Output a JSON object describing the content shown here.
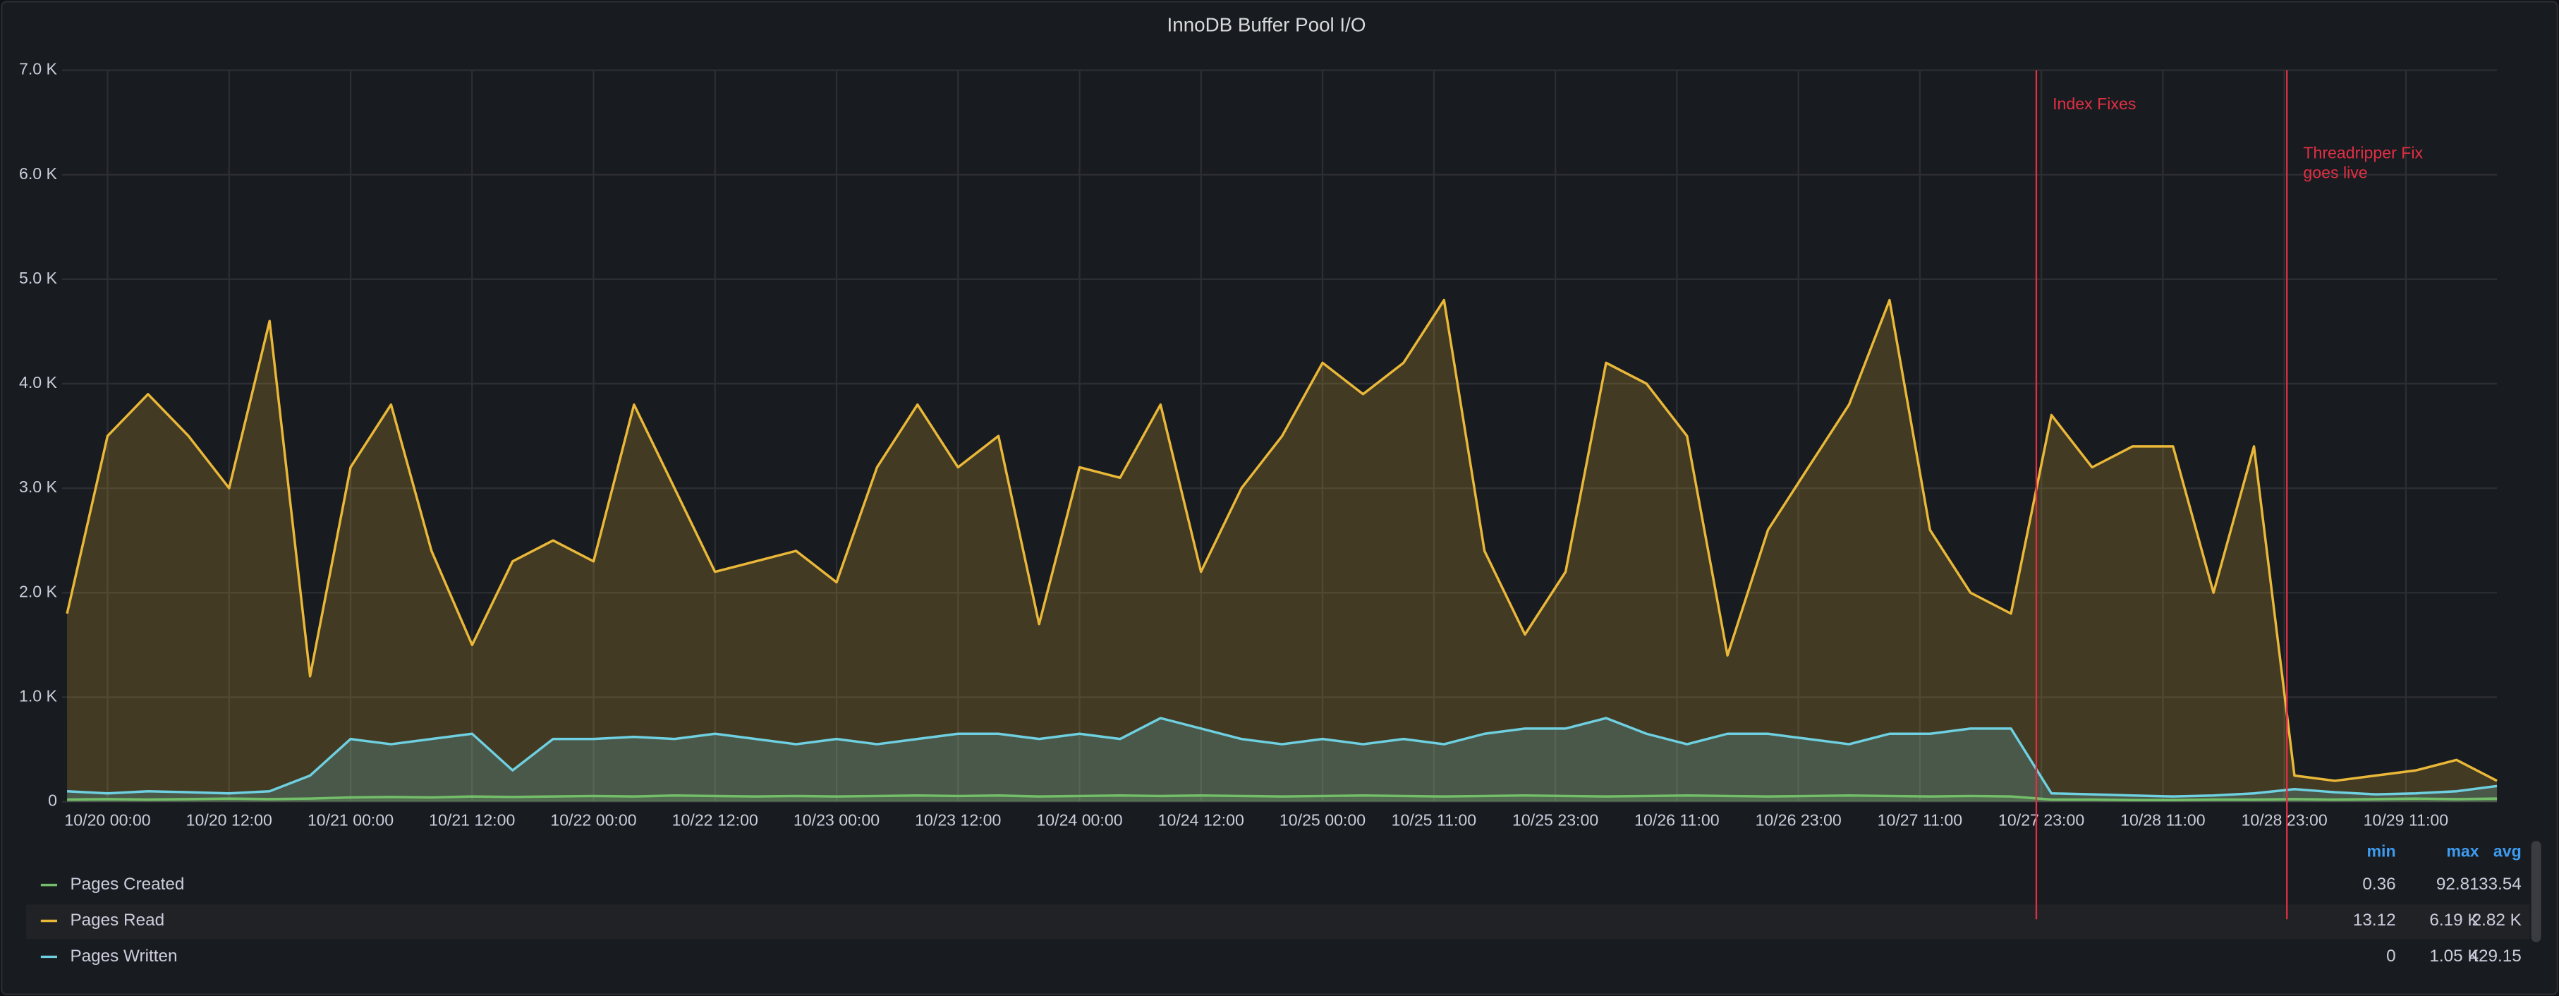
{
  "chart_data": {
    "type": "line",
    "title": "InnoDB Buffer Pool I/O",
    "x": [
      "10/19 20:00",
      "10/20 00:00",
      "10/20 04:00",
      "10/20 08:00",
      "10/20 12:00",
      "10/20 16:00",
      "10/20 20:00",
      "10/21 00:00",
      "10/21 04:00",
      "10/21 08:00",
      "10/21 12:00",
      "10/21 16:00",
      "10/21 20:00",
      "10/22 00:00",
      "10/22 04:00",
      "10/22 08:00",
      "10/22 12:00",
      "10/22 16:00",
      "10/22 20:00",
      "10/23 00:00",
      "10/23 04:00",
      "10/23 08:00",
      "10/23 12:00",
      "10/23 16:00",
      "10/23 20:00",
      "10/24 00:00",
      "10/24 04:00",
      "10/24 08:00",
      "10/24 12:00",
      "10/24 16:00",
      "10/24 20:00",
      "10/25 00:00",
      "10/25 04:00",
      "10/25 08:00",
      "10/25 12:00",
      "10/25 16:00",
      "10/25 20:00",
      "10/26 00:00",
      "10/26 04:00",
      "10/26 08:00",
      "10/26 12:00",
      "10/26 16:00",
      "10/26 20:00",
      "10/27 00:00",
      "10/27 04:00",
      "10/27 08:00",
      "10/27 12:00",
      "10/27 16:00",
      "10/27 20:00",
      "10/28 00:00",
      "10/28 04:00",
      "10/28 08:00",
      "10/28 12:00",
      "10/28 16:00",
      "10/28 20:00",
      "10/29 00:00",
      "10/29 04:00",
      "10/29 08:00",
      "10/29 12:00",
      "10/29 16:00",
      "10/29 20:00"
    ],
    "xlim": [
      "10/19 19:30",
      "10/29 20:00"
    ],
    "xticks": [
      "10/20 00:00",
      "10/20 12:00",
      "10/21 00:00",
      "10/21 12:00",
      "10/22 00:00",
      "10/22 12:00",
      "10/23 00:00",
      "10/23 12:00",
      "10/24 00:00",
      "10/24 12:00",
      "10/25 00:00",
      "10/25 11:00",
      "10/25 23:00",
      "10/26 11:00",
      "10/26 23:00",
      "10/27 11:00",
      "10/27 23:00",
      "10/28 11:00",
      "10/28 23:00",
      "10/29 11:00"
    ],
    "ylim": [
      0,
      7000
    ],
    "yticks": [
      0,
      {
        "value": 1000,
        "label": "1.0 K"
      },
      {
        "value": 2000,
        "label": "2.0 K"
      },
      {
        "value": 3000,
        "label": "3.0 K"
      },
      {
        "value": 4000,
        "label": "4.0 K"
      },
      {
        "value": 5000,
        "label": "5.0 K"
      },
      {
        "value": 6000,
        "label": "6.0 K"
      },
      {
        "value": 7000,
        "label": "7.0 K"
      }
    ],
    "grid": true,
    "legend_columns": [
      "min",
      "max",
      "avg"
    ],
    "series": [
      {
        "name": "Pages Created",
        "color": "#73bf69",
        "legend_values": [
          "0.36",
          "92.81",
          "33.54"
        ],
        "values": [
          20,
          25,
          20,
          25,
          30,
          25,
          30,
          40,
          45,
          40,
          50,
          45,
          50,
          55,
          50,
          60,
          55,
          50,
          55,
          50,
          55,
          60,
          55,
          60,
          50,
          55,
          60,
          55,
          60,
          55,
          50,
          55,
          60,
          55,
          50,
          55,
          60,
          55,
          50,
          55,
          60,
          55,
          50,
          55,
          60,
          55,
          50,
          55,
          50,
          20,
          20,
          15,
          15,
          20,
          20,
          25,
          20,
          25,
          30,
          25,
          30
        ]
      },
      {
        "name": "Pages Read",
        "color": "#eab839",
        "legend_values": [
          "13.12",
          "6.19 K",
          "2.82 K"
        ],
        "values": [
          1800,
          3500,
          3900,
          3500,
          3000,
          4600,
          1200,
          3200,
          3800,
          2400,
          1500,
          2300,
          2500,
          2300,
          3800,
          3000,
          2200,
          2300,
          2400,
          2100,
          3200,
          3800,
          3200,
          3500,
          1700,
          3200,
          3100,
          3800,
          2200,
          3000,
          3500,
          4200,
          3900,
          4200,
          4800,
          2400,
          1600,
          2200,
          4200,
          4000,
          3500,
          1400,
          2600,
          3200,
          3800,
          4800,
          2600,
          2000,
          1800,
          3700,
          3200,
          3400,
          3400,
          2000,
          3400,
          250,
          200,
          250,
          300,
          400,
          200
        ]
      },
      {
        "name": "Pages Written",
        "color": "#6ed0e0",
        "legend_values": [
          "0",
          "1.05 K",
          "429.15"
        ],
        "values": [
          100,
          80,
          100,
          90,
          80,
          100,
          250,
          600,
          550,
          600,
          650,
          300,
          600,
          600,
          620,
          600,
          650,
          600,
          550,
          600,
          550,
          600,
          650,
          650,
          600,
          650,
          600,
          800,
          700,
          600,
          550,
          600,
          550,
          600,
          550,
          650,
          700,
          700,
          800,
          650,
          550,
          650,
          650,
          600,
          550,
          650,
          650,
          700,
          700,
          80,
          70,
          60,
          50,
          60,
          80,
          120,
          90,
          70,
          80,
          100,
          150
        ]
      }
    ],
    "annotations": [
      {
        "text": "Index Fixes",
        "x": "10/27 22:30"
      },
      {
        "text": "Threadripper Fix goes live",
        "x": "10/28 23:15"
      }
    ]
  }
}
